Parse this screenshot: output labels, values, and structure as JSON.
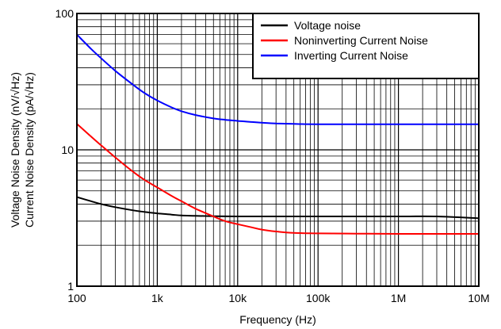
{
  "chart_data": {
    "type": "line",
    "title": "",
    "xlabel": "Frequency (Hz)",
    "ylabel": [
      "Voltage Noise Density (nV/√Hz)",
      "Current Noise Density (pA/√Hz)"
    ],
    "x_scale": "log",
    "y_scale": "log",
    "xlim": [
      100,
      10000000
    ],
    "ylim": [
      1,
      100
    ],
    "grid": true,
    "legend_position": "top-right",
    "x_ticks": [
      {
        "value": 100,
        "label": "100"
      },
      {
        "value": 1000,
        "label": "1k"
      },
      {
        "value": 10000,
        "label": "10k"
      },
      {
        "value": 100000,
        "label": "100k"
      },
      {
        "value": 1000000,
        "label": "1M"
      },
      {
        "value": 10000000,
        "label": "10M"
      }
    ],
    "y_ticks": [
      {
        "value": 1,
        "label": "1"
      },
      {
        "value": 10,
        "label": "10"
      },
      {
        "value": 100,
        "label": "100"
      }
    ],
    "series": [
      {
        "name": "Voltage noise",
        "color": "#000000",
        "x": [
          100,
          150,
          200,
          300,
          500,
          700,
          1000,
          1500,
          2000,
          3000,
          5000,
          10000,
          30000,
          100000,
          1000000,
          3000000,
          10000000
        ],
        "y": [
          4.5,
          4.2,
          4.0,
          3.8,
          3.6,
          3.5,
          3.42,
          3.35,
          3.3,
          3.28,
          3.26,
          3.25,
          3.25,
          3.25,
          3.25,
          3.25,
          3.15
        ]
      },
      {
        "name": "Noninverting Current Noise",
        "color": "#ff0000",
        "x": [
          100,
          150,
          200,
          300,
          500,
          700,
          1000,
          1500,
          2000,
          3000,
          5000,
          7000,
          10000,
          15000,
          20000,
          30000,
          50000,
          100000,
          300000,
          1000000,
          10000000
        ],
        "y": [
          15.5,
          12.5,
          10.8,
          8.8,
          6.9,
          6.0,
          5.3,
          4.6,
          4.2,
          3.7,
          3.25,
          3.0,
          2.85,
          2.7,
          2.6,
          2.52,
          2.46,
          2.44,
          2.43,
          2.42,
          2.42
        ]
      },
      {
        "name": "Inverting Current Noise",
        "color": "#0000ff",
        "x": [
          100,
          150,
          200,
          300,
          500,
          700,
          1000,
          1500,
          2000,
          3000,
          5000,
          7000,
          10000,
          15000,
          20000,
          30000,
          50000,
          100000,
          1000000,
          10000000
        ],
        "y": [
          70,
          55,
          47,
          38,
          30,
          26,
          23,
          20.5,
          19.2,
          18,
          17,
          16.6,
          16.3,
          16.0,
          15.8,
          15.6,
          15.5,
          15.4,
          15.4,
          15.4
        ]
      }
    ]
  }
}
